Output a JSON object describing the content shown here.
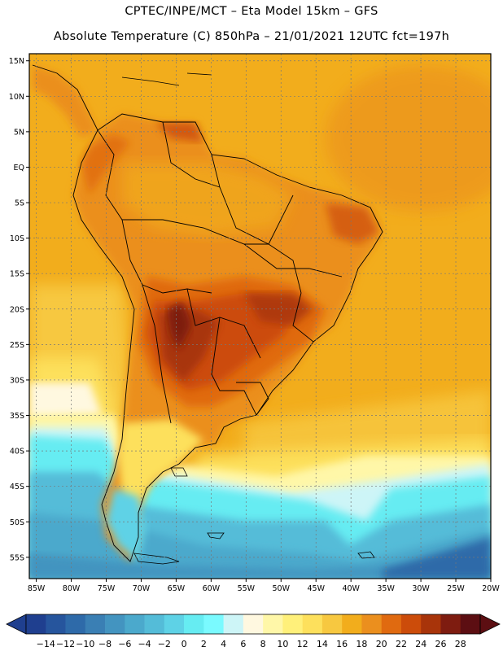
{
  "title_line1": "CPTEC/INPE/MCT –   Eta Model 15km – GFS",
  "title_line2": "Absolute Temperature (C) 850hPa – 21/01/2021 12UTC fct=197h",
  "lat_labels": [
    "15N",
    "10N",
    "5N",
    "EQ",
    "5S",
    "10S",
    "15S",
    "20S",
    "25S",
    "30S",
    "35S",
    "40S",
    "45S",
    "50S",
    "55S"
  ],
  "lon_labels": [
    "85W",
    "80W",
    "75W",
    "70W",
    "65W",
    "60W",
    "55W",
    "50W",
    "45W",
    "40W",
    "35W",
    "30W",
    "25W",
    "20W"
  ],
  "colorbar": {
    "labels": [
      "-14",
      "-12",
      "-10",
      "-8",
      "-6",
      "-4",
      "-2",
      "0",
      "2",
      "4",
      "6",
      "8",
      "10",
      "12",
      "14",
      "16",
      "18",
      "20",
      "22",
      "24",
      "26",
      "28"
    ],
    "colors": [
      "#1f3f8f",
      "#26559d",
      "#2e6aa9",
      "#3a7fb4",
      "#4394c0",
      "#4ba9cc",
      "#54bcd8",
      "#5ed2e6",
      "#66ecf2",
      "#7afaff",
      "#cdf5f7",
      "#fff8e0",
      "#fff7a8",
      "#fff07a",
      "#fde05c",
      "#f7c840",
      "#f2ad1c",
      "#eb8f1e",
      "#e06a10",
      "#cc4c0a",
      "#a8340a",
      "#7e1c10",
      "#5c0e12"
    ],
    "under_color": "#1f3f8f",
    "over_color": "#5c0e12"
  },
  "map": {
    "extent": {
      "lon_min": -86,
      "lon_max": -20,
      "lat_min": -58,
      "lat_max": 16
    },
    "ocean_color": "#f2ad1c",
    "land_color": "#eb8f1e"
  }
}
